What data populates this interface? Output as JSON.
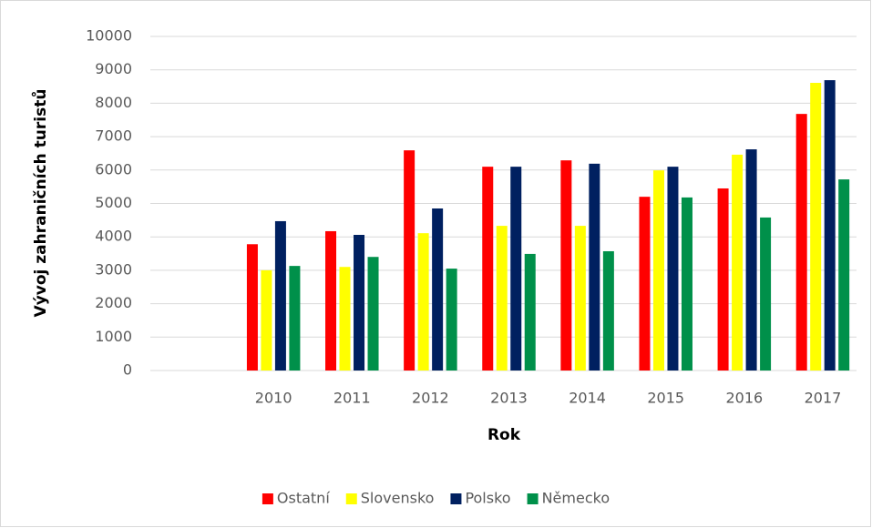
{
  "chart_data": {
    "type": "bar",
    "x_label": "Rok",
    "y_label": "Vývoj zahraničních turistů",
    "categories": [
      null,
      "2010",
      "2011",
      "2012",
      "2013",
      "2014",
      "2015",
      "2016",
      "2017"
    ],
    "series": [
      {
        "name": "Ostatní",
        "color": "#ff0000",
        "values": [
          null,
          3780,
          4170,
          6590,
          6100,
          6290,
          5200,
          5450,
          7680
        ]
      },
      {
        "name": "Slovensko",
        "color": "#ffff00",
        "values": [
          null,
          3000,
          3100,
          4110,
          4330,
          4330,
          5990,
          6460,
          8610
        ]
      },
      {
        "name": "Polsko",
        "color": "#002060",
        "values": [
          null,
          4470,
          4060,
          4850,
          6100,
          6190,
          6100,
          6620,
          8690
        ]
      },
      {
        "name": "Německo",
        "color": "#00904a",
        "values": [
          null,
          3130,
          3400,
          3050,
          3490,
          3570,
          5180,
          4580,
          5720
        ]
      }
    ],
    "ylim": [
      0,
      10000
    ],
    "yticks": [
      0,
      1000,
      2000,
      3000,
      4000,
      5000,
      6000,
      7000,
      8000,
      9000,
      10000
    ],
    "grid": true,
    "legend": "bottom"
  }
}
